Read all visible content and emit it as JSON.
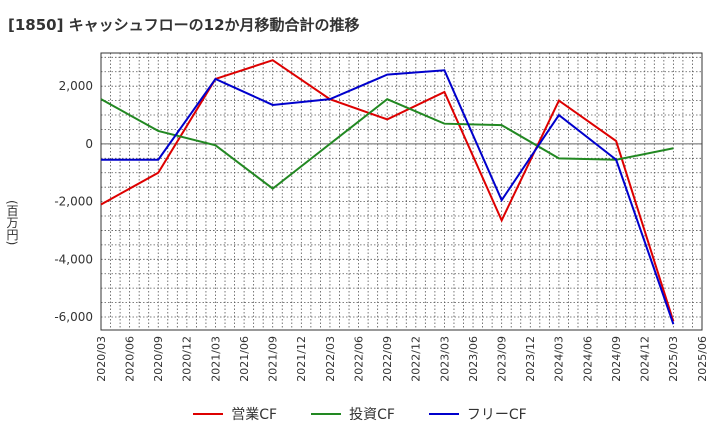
{
  "title": "[1850]  キャッシュフローの12か月移動合計の推移",
  "chart_data": {
    "type": "line",
    "ylabel": "(百万円)",
    "xlabel": "",
    "x_tick_labels": [
      "2020/03",
      "2020/06",
      "2020/09",
      "2020/12",
      "2021/03",
      "2021/06",
      "2021/09",
      "2021/12",
      "2022/03",
      "2022/06",
      "2022/09",
      "2022/12",
      "2023/03",
      "2023/06",
      "2023/09",
      "2023/12",
      "2024/03",
      "2024/06",
      "2024/09",
      "2024/12",
      "2025/03",
      "2025/06"
    ],
    "y_ticks": [
      2000,
      0,
      -2000,
      -4000,
      -6000
    ],
    "y_tick_labels": [
      "2,000",
      "0",
      "-2,000",
      "-4,000",
      "-6,000"
    ],
    "ylim": [
      -6450,
      3150
    ],
    "grid": true,
    "legend_position": "bottom",
    "series": [
      {
        "name": "営業CF",
        "color": "#dd0000",
        "points": [
          [
            "2020/03",
            -2100
          ],
          [
            "2020/09",
            -1000
          ],
          [
            "2021/03",
            2250
          ],
          [
            "2021/09",
            2900
          ],
          [
            "2022/03",
            1550
          ],
          [
            "2022/09",
            850
          ],
          [
            "2023/03",
            1800
          ],
          [
            "2023/09",
            -2650
          ],
          [
            "2024/03",
            1500
          ],
          [
            "2024/09",
            100
          ],
          [
            "2025/03",
            -6150
          ]
        ]
      },
      {
        "name": "投資CF",
        "color": "#228822",
        "points": [
          [
            "2020/03",
            1550
          ],
          [
            "2020/09",
            450
          ],
          [
            "2021/03",
            -50
          ],
          [
            "2021/09",
            -1550
          ],
          [
            "2022/09",
            1550
          ],
          [
            "2023/03",
            700
          ],
          [
            "2023/09",
            650
          ],
          [
            "2024/03",
            -500
          ],
          [
            "2024/09",
            -550
          ],
          [
            "2025/03",
            -150
          ]
        ]
      },
      {
        "name": "フリーCF",
        "color": "#0000cc",
        "points": [
          [
            "2020/03",
            -550
          ],
          [
            "2020/09",
            -550
          ],
          [
            "2021/03",
            2250
          ],
          [
            "2021/09",
            1350
          ],
          [
            "2022/03",
            1550
          ],
          [
            "2022/09",
            2400
          ],
          [
            "2023/03",
            2550
          ],
          [
            "2023/09",
            -1950
          ],
          [
            "2024/03",
            1000
          ],
          [
            "2024/09",
            -550
          ],
          [
            "2025/03",
            -6250
          ]
        ]
      }
    ]
  }
}
